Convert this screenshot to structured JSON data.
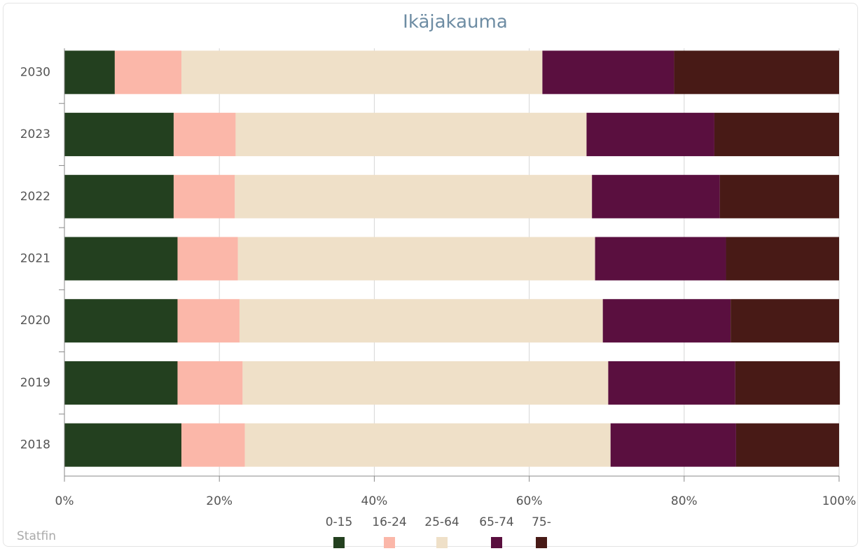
{
  "chart_data": {
    "type": "stacked_barh",
    "title": "Ikäjakauma",
    "source": "Statfin",
    "categories": [
      "2030",
      "2023",
      "2022",
      "2021",
      "2020",
      "2019",
      "2018"
    ],
    "series": [
      {
        "name": "0-15",
        "color": "#23401f",
        "values": [
          6.5,
          14.1,
          14.1,
          14.6,
          14.6,
          14.6,
          15.1
        ]
      },
      {
        "name": "16-24",
        "color": "#fbb7a9",
        "values": [
          8.6,
          8.0,
          7.9,
          7.8,
          8.0,
          8.4,
          8.2
        ]
      },
      {
        "name": "25-64",
        "color": "#efe0c8",
        "values": [
          46.6,
          45.3,
          46.1,
          46.1,
          46.9,
          47.2,
          47.2
        ]
      },
      {
        "name": "65-74",
        "color": "#5a0f3f",
        "values": [
          17.0,
          16.5,
          16.5,
          16.9,
          16.5,
          16.4,
          16.2
        ]
      },
      {
        "name": "75-",
        "color": "#481a16",
        "values": [
          21.3,
          16.1,
          15.4,
          14.6,
          14.0,
          13.5,
          13.3
        ]
      }
    ],
    "xlim": [
      0,
      100
    ],
    "xticks": [
      {
        "value": 0,
        "label": "0%"
      },
      {
        "value": 20,
        "label": "20%"
      },
      {
        "value": 40,
        "label": "40%"
      },
      {
        "value": 60,
        "label": "60%"
      },
      {
        "value": 80,
        "label": "80%"
      },
      {
        "value": 100,
        "label": "100%"
      }
    ],
    "grid": true
  }
}
